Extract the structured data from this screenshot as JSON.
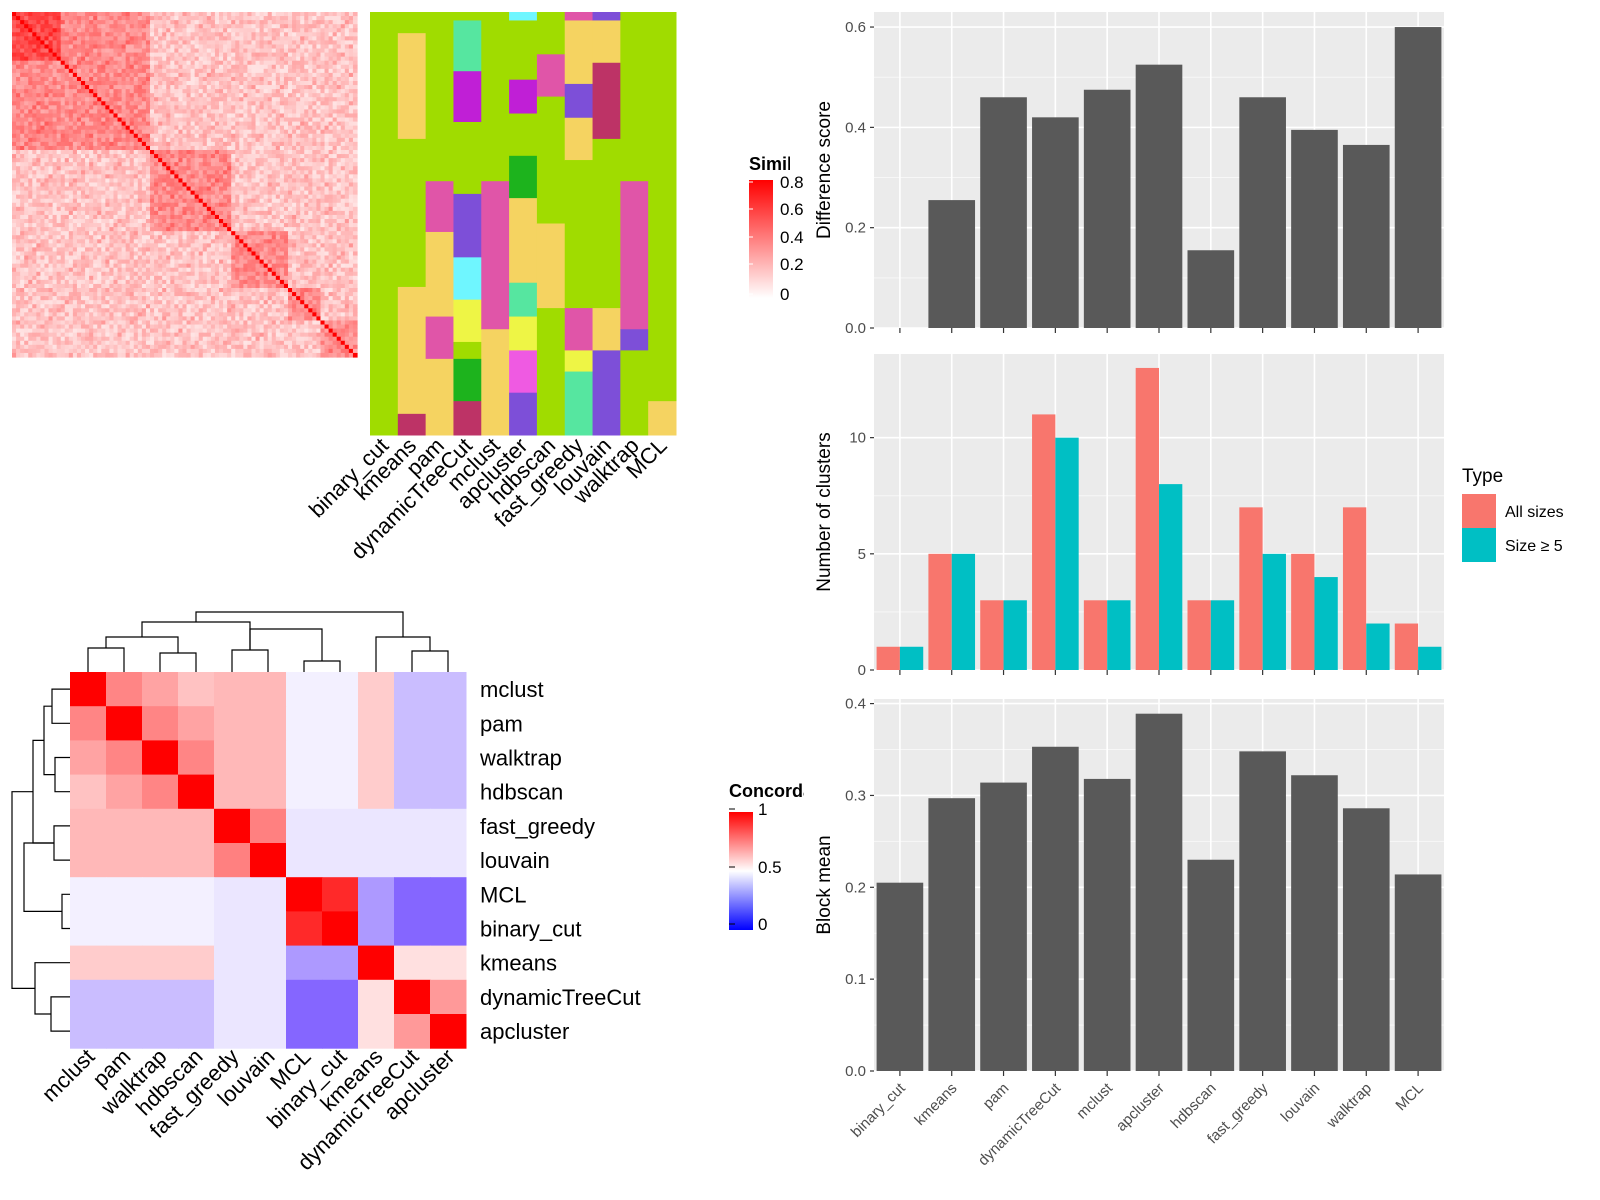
{
  "methods": [
    "binary_cut",
    "kmeans",
    "pam",
    "dynamicTreeCut",
    "mclust",
    "apcluster",
    "hdbscan",
    "fast_greedy",
    "louvain",
    "walktrap",
    "MCL"
  ],
  "similarity_legend": {
    "title": "Similarity",
    "ticks": [
      "0.8",
      "0.6",
      "0.4",
      "0.2",
      "0"
    ]
  },
  "concordance_legend": {
    "title": "Concordance",
    "ticks": [
      "1",
      "0.5",
      "0"
    ]
  },
  "concordance_order": [
    "mclust",
    "pam",
    "walktrap",
    "hdbscan",
    "fast_greedy",
    "louvain",
    "MCL",
    "binary_cut",
    "kmeans",
    "dynamicTreeCut",
    "apcluster"
  ],
  "palette": {
    "green": "#a0dc00",
    "pink": "#e055a8",
    "yellow": "#f5d361",
    "purple": "#7d4fd8",
    "magenta": "#c01fd6",
    "maroon": "#bd3366",
    "mint": "#56e6a0",
    "cyan": "#6ff6ff",
    "lime": "#eef545",
    "darkgreen": "#1db31d",
    "orchid": "#ef5ae2",
    "bar_fill": "#595959",
    "all_sizes": "#f8766d",
    "size5": "#00bfc4",
    "panel_bg": "#ebebeb"
  },
  "chart_data": [
    {
      "type": "bar",
      "categories": [
        "binary_cut",
        "kmeans",
        "pam",
        "dynamicTreeCut",
        "mclust",
        "apcluster",
        "hdbscan",
        "fast_greedy",
        "louvain",
        "walktrap",
        "MCL"
      ],
      "values": [
        0,
        0.255,
        0.46,
        0.42,
        0.475,
        0.525,
        0.155,
        0.46,
        0.395,
        0.365,
        0.6
      ],
      "ylabel": "Difference score",
      "ylim": [
        0,
        0.63
      ],
      "yticks": [
        0.0,
        0.2,
        0.4,
        0.6
      ],
      "grid": true
    },
    {
      "type": "bar",
      "categories": [
        "binary_cut",
        "kmeans",
        "pam",
        "dynamicTreeCut",
        "mclust",
        "apcluster",
        "hdbscan",
        "fast_greedy",
        "louvain",
        "walktrap",
        "MCL"
      ],
      "series": [
        {
          "name": "All sizes",
          "values": [
            1,
            5,
            3,
            11,
            3,
            13,
            3,
            7,
            5,
            7,
            2
          ]
        },
        {
          "name": "Size ≥ 5",
          "values": [
            1,
            5,
            3,
            10,
            3,
            8,
            3,
            5,
            4,
            2,
            1
          ]
        }
      ],
      "ylabel": "Number of clusters",
      "ylim": [
        0,
        13.6
      ],
      "yticks": [
        0,
        5,
        10
      ],
      "legend": {
        "title": "Type",
        "position": "right"
      },
      "grid": true
    },
    {
      "type": "bar",
      "categories": [
        "binary_cut",
        "kmeans",
        "pam",
        "dynamicTreeCut",
        "mclust",
        "apcluster",
        "hdbscan",
        "fast_greedy",
        "louvain",
        "walktrap",
        "MCL"
      ],
      "values": [
        0.205,
        0.297,
        0.314,
        0.353,
        0.318,
        0.389,
        0.23,
        0.348,
        0.322,
        0.286,
        0.214
      ],
      "ylabel": "Block mean",
      "ylim": [
        0,
        0.405
      ],
      "yticks": [
        0.0,
        0.1,
        0.2,
        0.3,
        0.4
      ],
      "grid": true
    }
  ]
}
